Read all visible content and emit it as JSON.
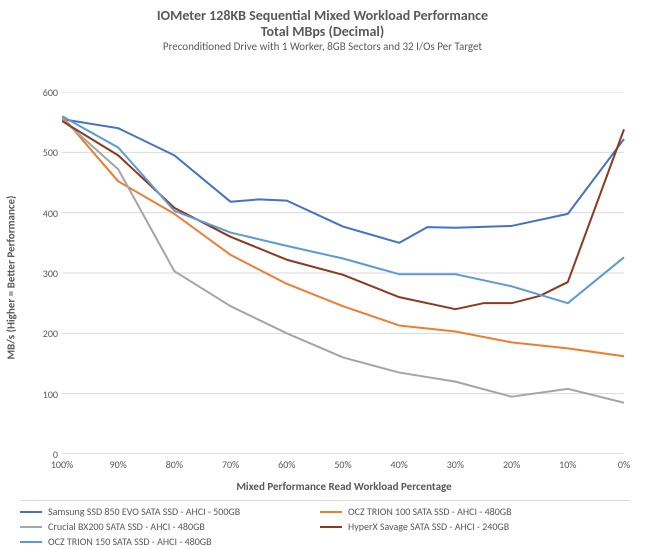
{
  "chart": {
    "type": "line",
    "title_line1": "IOMeter 128KB Sequential Mixed Workload Performance",
    "title_line2": "Total MBps (Decimal)",
    "title_fontsize": 14,
    "subtitle": "Preconditioned Drive with 1 Worker, 8GB Sectors and 32 I/Os Per Target",
    "subtitle_fontsize": 11,
    "ylabel": "MB/s (Higher = Better Performance)",
    "xlabel": "Mixed Performance Read Workload Percentage",
    "label_fontsize": 11,
    "tick_fontsize": 10,
    "background_color": "#ffffff",
    "grid_color": "#d9d9d9",
    "axis_color": "#bfbfbf",
    "text_color": "#595959",
    "ylim": [
      0,
      600
    ],
    "ytick_step": 100,
    "x_categories": [
      "100%",
      "90%",
      "80%",
      "70%",
      "60%",
      "50%",
      "40%",
      "30%",
      "20%",
      "10%",
      "0%"
    ],
    "line_width": 2,
    "series": [
      {
        "name": "Samsung SSD 850 EVO SATA SSD - AHCI - 500GB",
        "color": "#4472c4",
        "values": [
          555,
          540,
          495,
          418,
          422,
          420,
          377,
          350,
          376,
          375,
          378,
          398,
          522
        ],
        "x_frac": [
          0.0,
          0.1,
          0.2,
          0.3,
          0.35,
          0.4,
          0.5,
          0.6,
          0.65,
          0.7,
          0.8,
          0.9,
          1.0
        ]
      },
      {
        "name": "OCZ TRION 100 SATA SSD - AHCI - 480GB",
        "color": "#ed7d31",
        "values": [
          560,
          452,
          398,
          330,
          282,
          245,
          213,
          203,
          185,
          175,
          162
        ],
        "x_frac": [
          0.0,
          0.1,
          0.2,
          0.3,
          0.4,
          0.5,
          0.6,
          0.7,
          0.8,
          0.9,
          1.0
        ]
      },
      {
        "name": "Crucial BX200 SATA SSD - AHCI - 480GB",
        "color": "#a5a5a5",
        "values": [
          555,
          472,
          303,
          245,
          200,
          160,
          135,
          120,
          95,
          108,
          85
        ],
        "x_frac": [
          0.0,
          0.1,
          0.2,
          0.3,
          0.4,
          0.5,
          0.6,
          0.7,
          0.8,
          0.9,
          1.0
        ]
      },
      {
        "name": "HyperX Savage SATA SSD - AHCI - 240GB",
        "color": "#8b3a1e",
        "values": [
          552,
          495,
          408,
          360,
          322,
          297,
          260,
          240,
          250,
          250,
          262,
          285,
          538
        ],
        "x_frac": [
          0.0,
          0.1,
          0.2,
          0.3,
          0.4,
          0.5,
          0.6,
          0.7,
          0.75,
          0.8,
          0.85,
          0.9,
          1.0
        ]
      },
      {
        "name": "OCZ TRION 150 SATA SSD - AHCI - 480GB",
        "color": "#5b9bd5",
        "values": [
          560,
          508,
          403,
          367,
          345,
          324,
          298,
          298,
          278,
          250,
          326
        ],
        "x_frac": [
          0.0,
          0.1,
          0.2,
          0.3,
          0.4,
          0.5,
          0.6,
          0.7,
          0.8,
          0.9,
          1.0
        ]
      }
    ]
  }
}
